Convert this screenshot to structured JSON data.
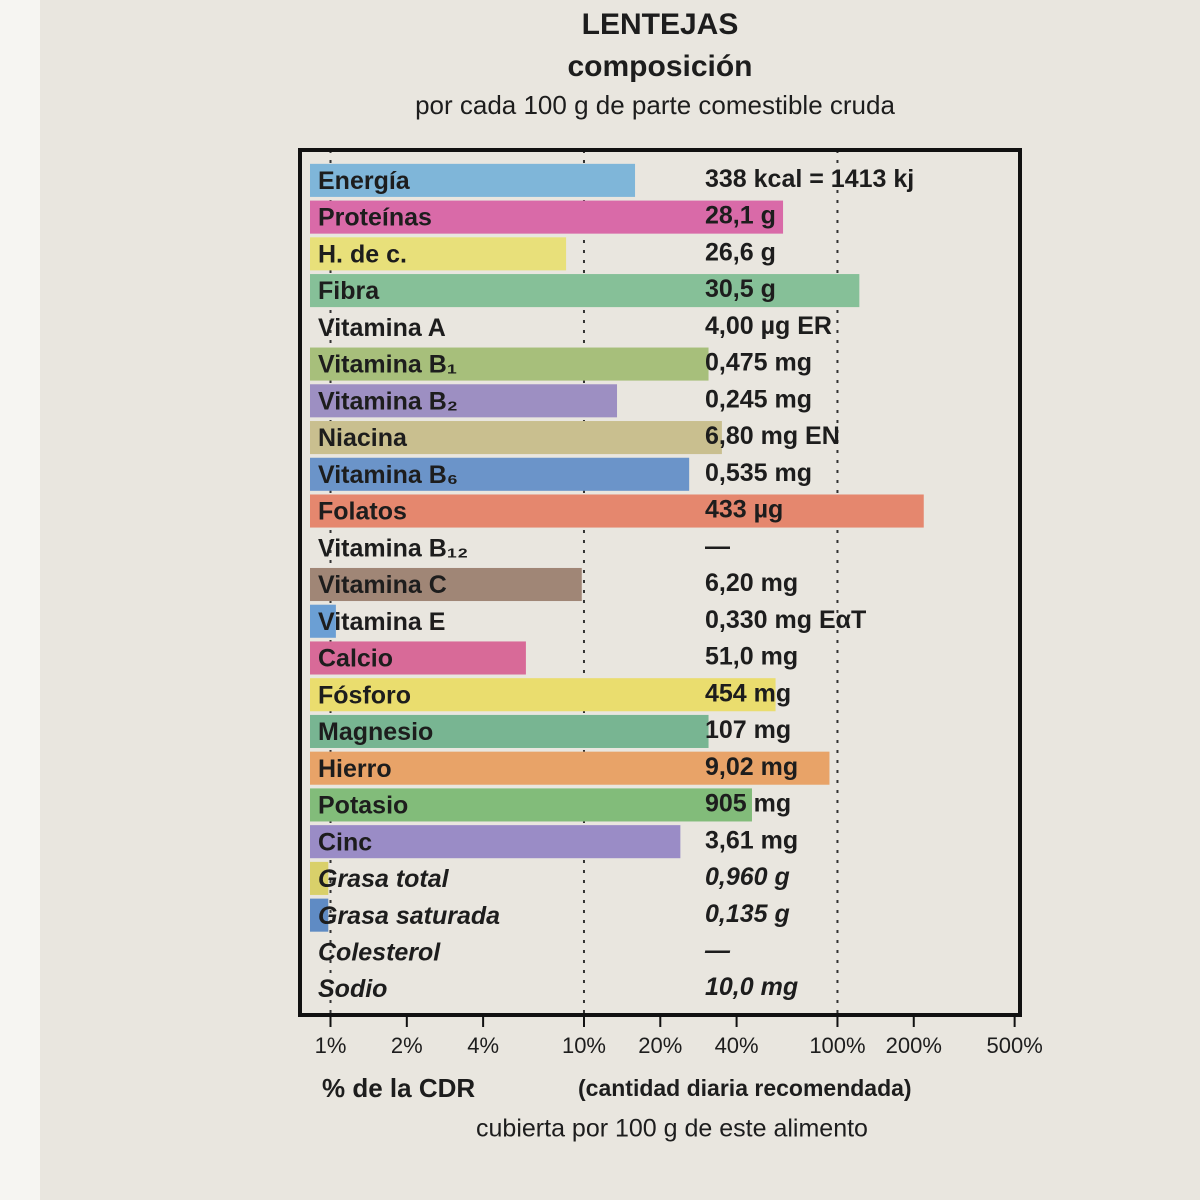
{
  "chart_data": {
    "type": "barh",
    "title": "LENTEJAS",
    "subtitle": "composición",
    "note": "por cada 100 g de parte comestible cruda",
    "xlabel": "% de la CDR",
    "xlabel_note": "(cantidad diaria recomendada)",
    "xlabel_sub": "cubierta por 100 g de este alimento",
    "log_x": true,
    "xlim": [
      0.83,
      525
    ],
    "xticks": [
      {
        "value": 1,
        "label": "1%"
      },
      {
        "value": 2,
        "label": "2%"
      },
      {
        "value": 4,
        "label": "4%"
      },
      {
        "value": 10,
        "label": "10%"
      },
      {
        "value": 20,
        "label": "20%"
      },
      {
        "value": 40,
        "label": "40%"
      },
      {
        "value": 100,
        "label": "100%"
      },
      {
        "value": 200,
        "label": "200%"
      },
      {
        "value": 500,
        "label": "500%"
      }
    ],
    "gridlines": [
      1,
      10,
      100
    ],
    "categories": [
      "Energía",
      "Proteínas",
      "H. de c.",
      "Fibra",
      "Vitamina A",
      "Vitamina B₁",
      "Vitamina B₂",
      "Niacina",
      "Vitamina B₆",
      "Folatos",
      "Vitamina B₁₂",
      "Vitamina C",
      "Vitamina E",
      "Calcio",
      "Fósforo",
      "Magnesio",
      "Hierro",
      "Potasio",
      "Cinc",
      "Grasa total",
      "Grasa saturada",
      "Colesterol",
      "Sodio"
    ],
    "amounts": [
      "338 kcal = 1413 kj",
      "28,1 g",
      "26,6 g",
      "30,5 g",
      "4,00 µg ER",
      "0,475 mg",
      "0,245 mg",
      "6,80 mg EN",
      "0,535 mg",
      "433 µg",
      "—",
      "6,20 mg",
      "0,330 mg EαT",
      "51,0 mg",
      "454 mg",
      "107 mg",
      "9,02 mg",
      "905 mg",
      "3,61 mg",
      "0,960 g",
      "0,135 g",
      "—",
      "10,0 mg"
    ],
    "values": [
      15.9,
      61,
      8.5,
      122,
      null,
      31,
      13.5,
      35,
      26,
      219,
      null,
      9.8,
      1.05,
      5.9,
      57,
      31,
      93,
      46,
      24,
      0.98,
      0.98,
      null,
      null
    ],
    "colors": [
      "#7fb6d9",
      "#d96aa8",
      "#e8e07a",
      "#86c098",
      null,
      "#a7bf7b",
      "#9d8fc2",
      "#c9bf8f",
      "#6b94c9",
      "#e5876e",
      null,
      "#a08676",
      "#6b9fd4",
      "#d86a98",
      "#eadd6e",
      "#78b592",
      "#e8a368",
      "#82bc7a",
      "#9a8cc6",
      "#d9d06a",
      "#5f8bc4",
      null,
      null
    ]
  }
}
